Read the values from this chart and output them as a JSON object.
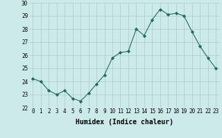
{
  "x": [
    0,
    1,
    2,
    3,
    4,
    5,
    6,
    7,
    8,
    9,
    10,
    11,
    12,
    13,
    14,
    15,
    16,
    17,
    18,
    19,
    20,
    21,
    22,
    23
  ],
  "y": [
    24.2,
    24.0,
    23.3,
    23.0,
    23.3,
    22.7,
    22.5,
    23.1,
    23.8,
    24.5,
    25.8,
    26.2,
    26.3,
    28.0,
    27.5,
    28.7,
    29.5,
    29.1,
    29.2,
    29.0,
    27.8,
    26.7,
    25.8,
    25.0
  ],
  "line_color": "#1e6b5e",
  "marker": "D",
  "marker_size": 2.2,
  "bg_color": "#cceaea",
  "grid_color": "#b0c8c8",
  "xlabel": "Humidex (Indice chaleur)",
  "ylim": [
    22,
    30
  ],
  "xlim": [
    -0.5,
    23.5
  ],
  "yticks": [
    22,
    23,
    24,
    25,
    26,
    27,
    28,
    29,
    30
  ],
  "xticks": [
    0,
    1,
    2,
    3,
    4,
    5,
    6,
    7,
    8,
    9,
    10,
    11,
    12,
    13,
    14,
    15,
    16,
    17,
    18,
    19,
    20,
    21,
    22,
    23
  ],
  "tick_fontsize": 5.5,
  "xlabel_fontsize": 7
}
